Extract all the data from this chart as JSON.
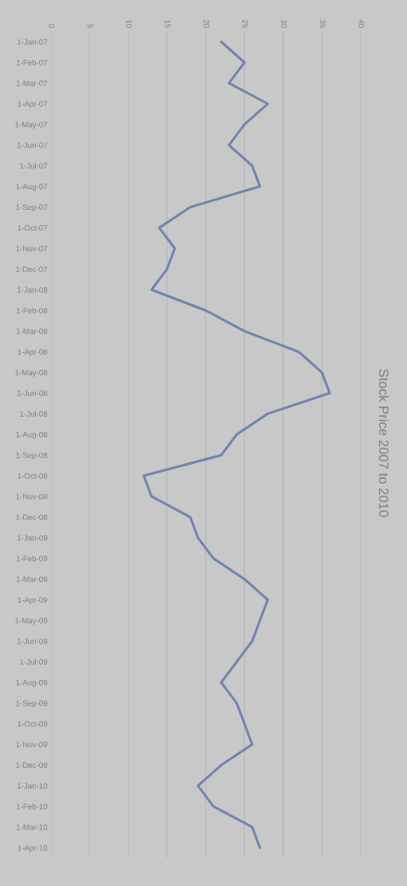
{
  "chart_data": {
    "type": "line",
    "title": "Stock Price 2007 to 2010",
    "orientation": "horizontal",
    "categories": [
      "1-Jan-07",
      "1-Feb-07",
      "1-Mar-07",
      "1-Apr-07",
      "1-May-07",
      "1-Jun-07",
      "1-Jul-07",
      "1-Aug-07",
      "1-Sep-07",
      "1-Oct-07",
      "1-Nov-07",
      "1-Dec-07",
      "1-Jan-08",
      "1-Feb-08",
      "1-Mar-08",
      "1-Apr-08",
      "1-May-08",
      "1-Jun-08",
      "1-Jul-08",
      "1-Aug-08",
      "1-Sep-08",
      "1-Oct-08",
      "1-Nov-08",
      "1-Dec-08",
      "1-Jan-09",
      "1-Feb-09",
      "1-Mar-09",
      "1-Apr-09",
      "1-May-09",
      "1-Jun-09",
      "1-Jul-09",
      "1-Aug-09",
      "1-Sep-09",
      "1-Oct-09",
      "1-Nov-09",
      "1-Dec-09",
      "1-Jan-10",
      "1-Feb-10",
      "1-Mar-10",
      "1-Apr-10"
    ],
    "series": [
      {
        "color": "#7185ad",
        "values": [
          22,
          25,
          23,
          28,
          25,
          23,
          26,
          27,
          18,
          14,
          16,
          15,
          13,
          20,
          25,
          32,
          35,
          36,
          28,
          24,
          22,
          12,
          13,
          18,
          19,
          21,
          25,
          28,
          27,
          26,
          24,
          22,
          24,
          25,
          26,
          22,
          19,
          21,
          26,
          27
        ]
      }
    ],
    "xlim": [
      0,
      40
    ],
    "xticks": [
      0,
      5,
      10,
      15,
      20,
      25,
      30,
      35,
      40
    ],
    "grid": "x",
    "marker": "none",
    "line_style": "solid"
  }
}
